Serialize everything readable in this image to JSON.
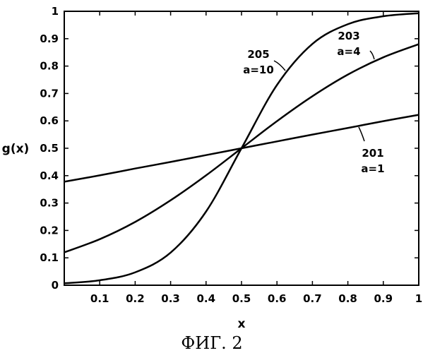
{
  "chart_data": {
    "type": "line",
    "xlabel": "x",
    "ylabel": "g(x)",
    "caption": "ФИГ. 2",
    "xlim": [
      0,
      1
    ],
    "ylim": [
      0,
      1
    ],
    "xticks": [
      "0.1",
      "0.2",
      "0.3",
      "0.4",
      "0.5",
      "0.6",
      "0.7",
      "0.8",
      "0.9",
      "1"
    ],
    "yticks": [
      "0",
      "0.1",
      "0.2",
      "0.3",
      "0.4",
      "0.5",
      "0.6",
      "0.7",
      "0.8",
      "0.9",
      "1"
    ],
    "grid": false,
    "series": [
      {
        "label_number": "201",
        "label_param": "a=1",
        "x": [
          0,
          0.1,
          0.2,
          0.3,
          0.4,
          0.5,
          0.6,
          0.7,
          0.8,
          0.9,
          1.0
        ],
        "y": [
          0.378,
          0.401,
          0.426,
          0.45,
          0.475,
          0.5,
          0.525,
          0.55,
          0.574,
          0.599,
          0.622
        ]
      },
      {
        "label_number": "203",
        "label_param": "a=4",
        "x": [
          0,
          0.1,
          0.2,
          0.3,
          0.4,
          0.5,
          0.6,
          0.7,
          0.8,
          0.9,
          1.0
        ],
        "y": [
          0.12,
          0.168,
          0.231,
          0.31,
          0.401,
          0.5,
          0.599,
          0.69,
          0.769,
          0.832,
          0.88
        ]
      },
      {
        "label_number": "205",
        "label_param": "a=10",
        "x": [
          0,
          0.1,
          0.2,
          0.3,
          0.4,
          0.5,
          0.6,
          0.7,
          0.8,
          0.9,
          1.0
        ],
        "y": [
          0.007,
          0.018,
          0.047,
          0.119,
          0.269,
          0.5,
          0.731,
          0.881,
          0.953,
          0.982,
          0.993
        ]
      }
    ]
  }
}
